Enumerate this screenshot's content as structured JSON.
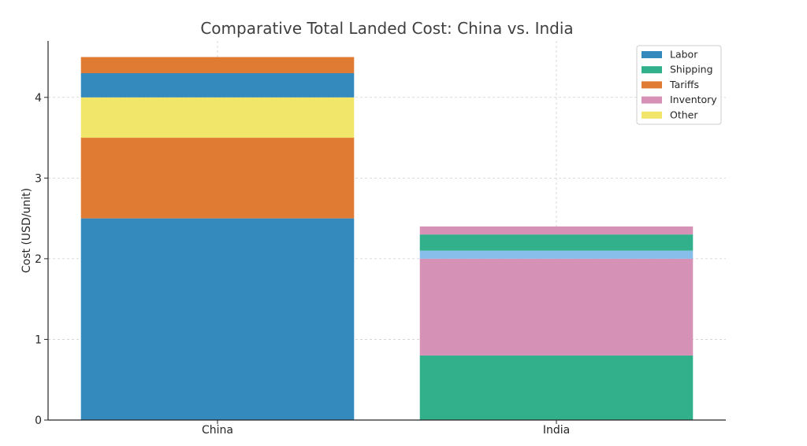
{
  "chart_data": {
    "type": "bar",
    "stacked": true,
    "title": "Comparative Total Landed Cost: China vs. India",
    "xlabel": "",
    "ylabel": "Cost (USD/unit)",
    "ylim": [
      0,
      4.7
    ],
    "yticks": [
      "0",
      "1",
      "2",
      "3",
      "4"
    ],
    "grid": true,
    "legend_position": "top-right",
    "categories": [
      "China",
      "India"
    ],
    "legend": [
      {
        "name": "Labor",
        "color": "#348ABD"
      },
      {
        "name": "Shipping",
        "color": "#32B08C"
      },
      {
        "name": "Tariffs",
        "color": "#E07B33"
      },
      {
        "name": "Inventory",
        "color": "#D592B6"
      },
      {
        "name": "Other",
        "color": "#F1E66A"
      }
    ],
    "stacks": [
      {
        "category": "China",
        "segments": [
          {
            "value": 2.5,
            "color": "#348ABD"
          },
          {
            "value": 1.0,
            "color": "#E07B33"
          },
          {
            "value": 0.5,
            "color": "#F1E66A"
          },
          {
            "value": 0.3,
            "color": "#348ABD"
          },
          {
            "value": 0.2,
            "color": "#E07B33"
          }
        ]
      },
      {
        "category": "India",
        "segments": [
          {
            "value": 0.8,
            "color": "#32B08C"
          },
          {
            "value": 1.2,
            "color": "#D592B6"
          },
          {
            "value": 0.1,
            "color": "#87BFEA"
          },
          {
            "value": 0.2,
            "color": "#32B08C"
          },
          {
            "value": 0.1,
            "color": "#D592B6"
          }
        ]
      }
    ]
  }
}
